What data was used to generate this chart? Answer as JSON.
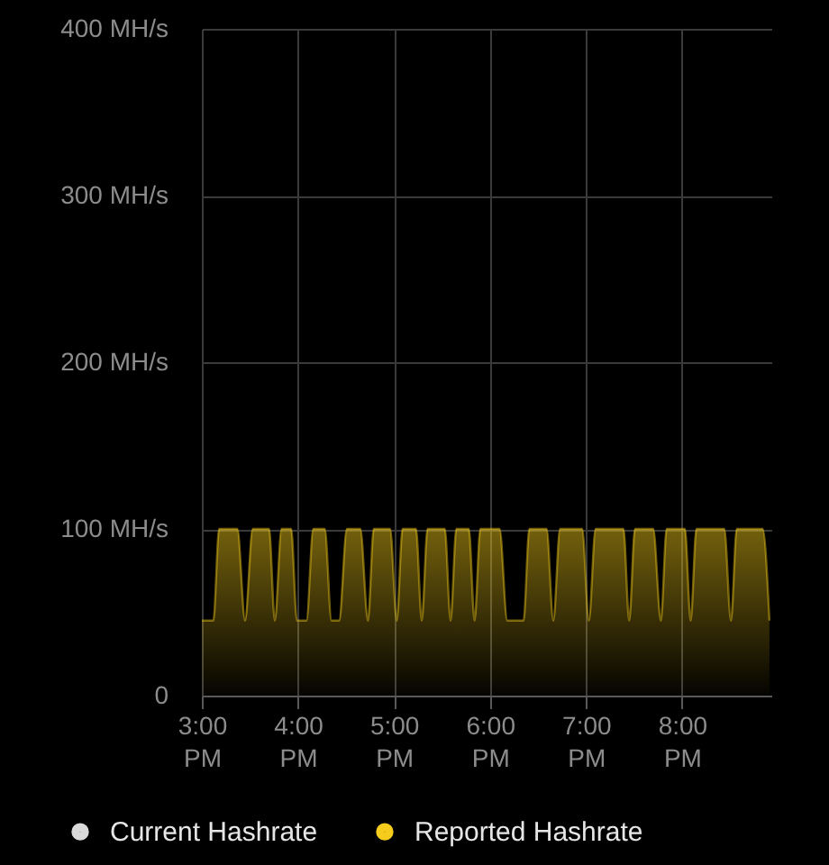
{
  "chart_data": {
    "type": "area",
    "x": [
      15.0,
      15.12,
      15.18,
      15.37,
      15.45,
      15.53,
      15.7,
      15.76,
      15.83,
      15.93,
      15.99,
      16.09,
      16.16,
      16.28,
      16.35,
      16.43,
      16.51,
      16.65,
      16.73,
      16.79,
      16.96,
      17.03,
      17.09,
      17.23,
      17.29,
      17.35,
      17.53,
      17.59,
      17.65,
      17.78,
      17.84,
      17.9,
      18.1,
      18.18,
      18.35,
      18.41,
      18.59,
      18.66,
      18.73,
      18.96,
      19.03,
      19.1,
      19.39,
      19.45,
      19.51,
      19.7,
      19.78,
      19.84,
      20.03,
      20.09,
      20.15,
      20.44,
      20.51,
      20.57,
      20.84,
      20.91
    ],
    "xlim": [
      15,
      20.93
    ],
    "xticks": [
      {
        "value": 15,
        "label": "3:00 PM"
      },
      {
        "value": 16,
        "label": "4:00 PM"
      },
      {
        "value": 17,
        "label": "5:00 PM"
      },
      {
        "value": 18,
        "label": "6:00 PM"
      },
      {
        "value": 19,
        "label": "7:00 PM"
      },
      {
        "value": 20,
        "label": "8:00 PM"
      }
    ],
    "ylim": [
      0,
      400
    ],
    "yticks": [
      0,
      {
        "value": 100,
        "label": "100 MH/s"
      },
      {
        "value": 200,
        "label": "200 MH/s"
      },
      {
        "value": 300,
        "label": "300 MH/s"
      },
      {
        "value": 400,
        "label": "400 MH/s"
      }
    ],
    "series": [
      {
        "name": "Current Hashrate",
        "color": "#d9d9d9",
        "type": "line",
        "values": [
          null,
          null,
          null,
          null,
          null,
          null,
          null,
          null,
          null,
          null,
          null,
          null,
          null,
          null,
          null,
          null,
          null,
          null,
          null,
          null,
          null,
          null,
          null,
          null,
          null,
          null,
          null,
          null,
          null,
          null,
          null,
          null,
          null,
          null,
          null,
          null,
          null,
          null,
          null,
          null,
          null,
          null,
          null,
          null,
          null,
          null,
          null,
          null,
          null,
          null,
          null,
          null,
          null,
          null,
          null,
          null
        ]
      },
      {
        "name": "Reported Hashrate",
        "color": "#f5cc1b",
        "values": [
          45,
          45,
          100,
          100,
          45,
          100,
          100,
          45,
          100,
          100,
          45,
          45,
          100,
          100,
          45,
          45,
          100,
          100,
          45,
          100,
          100,
          45,
          100,
          100,
          45,
          100,
          100,
          45,
          100,
          100,
          45,
          100,
          100,
          45,
          45,
          100,
          100,
          45,
          100,
          100,
          45,
          100,
          100,
          45,
          100,
          100,
          45,
          100,
          100,
          45,
          100,
          100,
          45,
          100,
          100,
          45
        ]
      }
    ],
    "grid": true,
    "legend": "bottom"
  }
}
